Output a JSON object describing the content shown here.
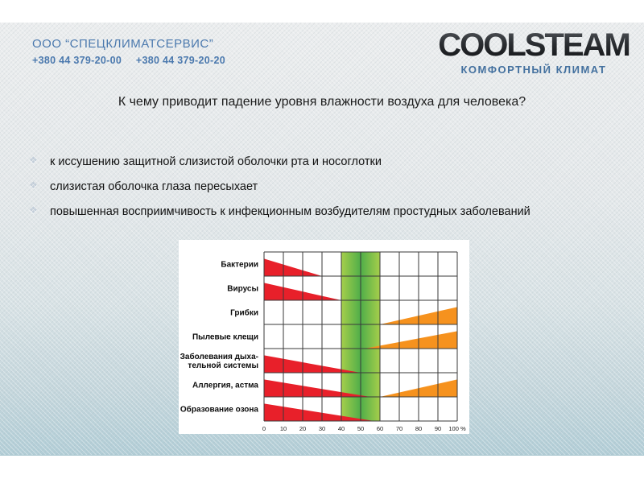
{
  "slide": {
    "header": {
      "company_name": "ООО “СПЕЦКЛИМАТСЕРВИС”",
      "phone_1": "+380 44 379-20-00",
      "phone_2": "+380 44 379-20-20",
      "brand": "COOLSTEAM",
      "tagline": "КОМФОРТНЫЙ КЛИМАТ"
    },
    "title": "К чему приводит падение уровня влажности воздуха для человека?",
    "bullets": [
      "к иссушению защитной слизистой оболочки рта и носоглотки",
      "слизистая оболочка глаза пересыхает",
      "повышенная восприимчивость к инфекционным возбудителям простудных заболеваний"
    ]
  },
  "chart_data": {
    "type": "area",
    "description": "Effect of relative air humidity on health factors; red wedges = risk at low humidity (decreasing), orange wedges = risk at high humidity (increasing), green band = optimal humidity zone",
    "xlim": [
      0,
      100
    ],
    "x_unit": "%",
    "x_ticks": [
      0,
      10,
      20,
      30,
      40,
      50,
      60,
      70,
      80,
      90,
      100
    ],
    "x_tick_labels": [
      "0",
      "10",
      "20",
      "30",
      "40",
      "50",
      "60",
      "70",
      "80",
      "90",
      "100 %"
    ],
    "optimal_zone": [
      40,
      60
    ],
    "grid": true,
    "rows": [
      {
        "label": [
          "Бактерии"
        ],
        "low_humidity_risk": [
          0,
          30
        ],
        "high_humidity_risk": null
      },
      {
        "label": [
          "Вирусы"
        ],
        "low_humidity_risk": [
          0,
          40
        ],
        "high_humidity_risk": null
      },
      {
        "label": [
          "Грибки"
        ],
        "low_humidity_risk": null,
        "high_humidity_risk": [
          60,
          100
        ]
      },
      {
        "label": [
          "Пылевые клещи"
        ],
        "low_humidity_risk": null,
        "high_humidity_risk": [
          52,
          100
        ]
      },
      {
        "label": [
          "Заболевания дыха-",
          "тельной системы"
        ],
        "low_humidity_risk": [
          0,
          50
        ],
        "high_humidity_risk": null
      },
      {
        "label": [
          "Аллергия, астма"
        ],
        "low_humidity_risk": [
          0,
          55
        ],
        "high_humidity_risk": [
          60,
          100
        ]
      },
      {
        "label": [
          "Образование озона"
        ],
        "low_humidity_risk": [
          0,
          57
        ],
        "high_humidity_risk": null
      }
    ],
    "colors": {
      "low_risk_red": "#e8202a",
      "high_risk_orange": "#f6921e",
      "optimal_green_light": "#a6ce4b",
      "optimal_green_dark": "#4fae49",
      "grid_line": "#3a3a3a",
      "label_text": "#0c0c0c"
    }
  }
}
